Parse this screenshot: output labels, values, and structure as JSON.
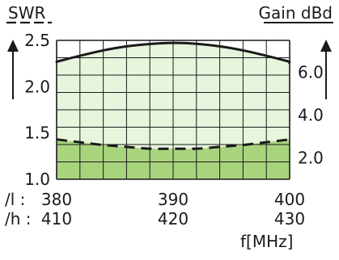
{
  "chart_data": {
    "type": "line",
    "left_axis_label": "SWR",
    "right_axis_label": "Gain dBd",
    "x_unit_label": "f[MHz]",
    "band_labels": [
      "/l :",
      "/h :"
    ],
    "bands": [
      {
        "label": "/l :",
        "ticks": [
          "380",
          "390",
          "400"
        ],
        "range": [
          380,
          400
        ]
      },
      {
        "label": "/h :",
        "ticks": [
          "410",
          "420",
          "430"
        ],
        "range": [
          410,
          430
        ]
      }
    ],
    "x_norm_range": [
      0,
      1
    ],
    "swr_axis": {
      "range": [
        1.0,
        2.5
      ],
      "ticks": [
        "1.0",
        "1.5",
        "2.0",
        "2.5"
      ],
      "tick_values": [
        1.0,
        1.5,
        2.0,
        2.5
      ]
    },
    "gain_axis": {
      "range": [
        1.0,
        7.5
      ],
      "ticks": [
        "2.0",
        "4.0",
        "6.0"
      ],
      "tick_values": [
        2.0,
        4.0,
        6.0
      ]
    },
    "grid": true,
    "series": [
      {
        "axis": "gain",
        "style": "solid",
        "x": [
          0.0,
          0.1,
          0.2,
          0.3,
          0.4,
          0.5,
          0.6,
          0.7,
          0.8,
          0.9,
          1.0
        ],
        "y": [
          6.5,
          6.78,
          7.03,
          7.22,
          7.33,
          7.38,
          7.34,
          7.22,
          7.03,
          6.78,
          6.5
        ]
      },
      {
        "axis": "swr",
        "style": "dashed",
        "x": [
          0.0,
          0.1,
          0.2,
          0.3,
          0.4,
          0.5,
          0.6,
          0.7,
          0.8,
          0.9,
          1.0
        ],
        "y": [
          1.43,
          1.4,
          1.37,
          1.35,
          1.33,
          1.33,
          1.33,
          1.35,
          1.37,
          1.4,
          1.43
        ]
      }
    ],
    "colors": {
      "upper_fill": "#e8f5dd",
      "lower_fill": "#a9d47e",
      "grid": "#1a1a1a",
      "line": "#1a1a1a"
    }
  }
}
